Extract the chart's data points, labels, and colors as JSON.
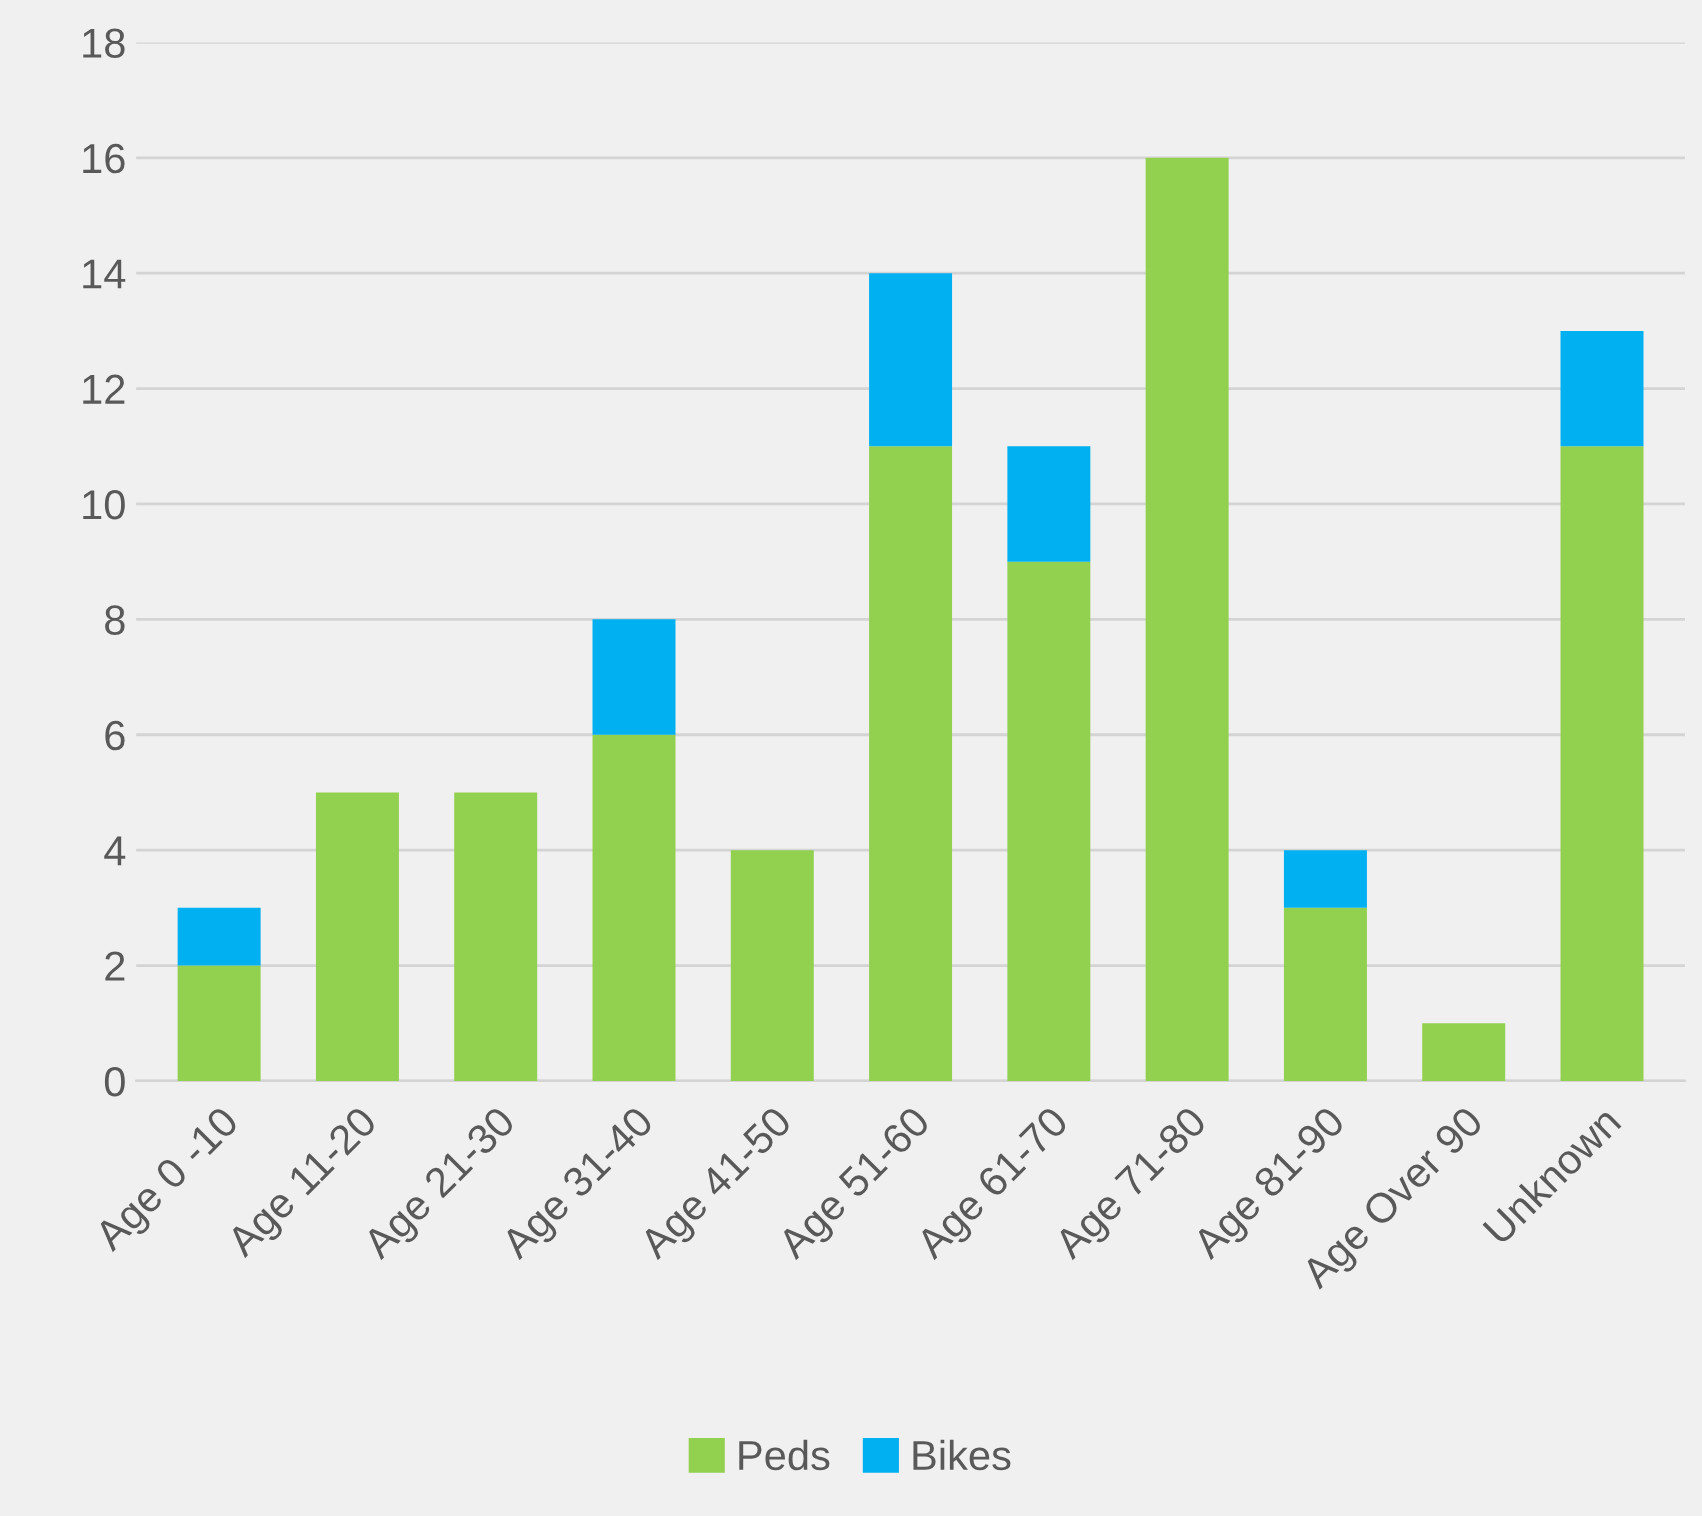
{
  "chart_data": {
    "type": "bar",
    "stacked": true,
    "categories": [
      "Age 0 -10",
      "Age 11-20",
      "Age 21-30",
      "Age 31-40",
      "Age 41-50",
      "Age 51-60",
      "Age 61-70",
      "Age 71-80",
      "Age 81-90",
      "Age Over 90",
      "Unknown"
    ],
    "series": [
      {
        "name": "Peds",
        "color": "#92d050",
        "values": [
          2,
          5,
          5,
          6,
          4,
          11,
          9,
          16,
          3,
          1,
          11
        ]
      },
      {
        "name": "Bikes",
        "color": "#00b0f0",
        "values": [
          1,
          null,
          null,
          2,
          null,
          3,
          2,
          null,
          1,
          null,
          2
        ]
      }
    ],
    "ylim": [
      0,
      18
    ],
    "yticks": [
      0,
      2,
      4,
      6,
      8,
      10,
      12,
      14,
      16,
      18
    ],
    "grid": "y",
    "legend": "bottom"
  }
}
